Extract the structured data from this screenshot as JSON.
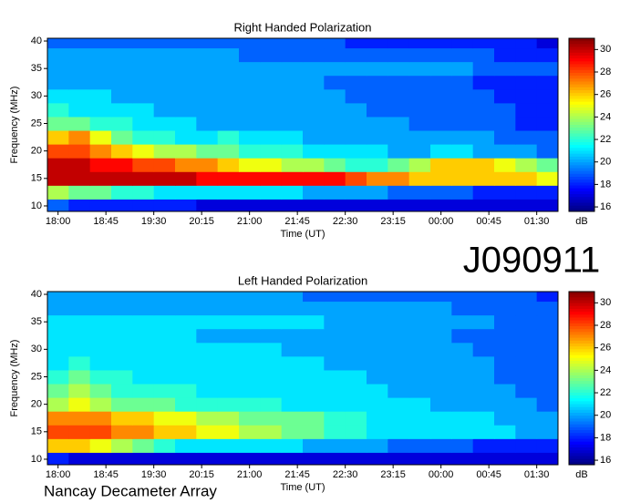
{
  "chart_data": [
    {
      "type": "heatmap",
      "title": "Right Handed Polarization",
      "xlabel": "Time (UT)",
      "ylabel": "Frequency (MHz)",
      "colorbar_label": "dB",
      "xlim": [
        -10,
        470
      ],
      "ylim": [
        9,
        40.5
      ],
      "clim": [
        15.6,
        31
      ],
      "xticks": [
        {
          "value": 0,
          "label": "18:00"
        },
        {
          "value": 45,
          "label": "18:45"
        },
        {
          "value": 90,
          "label": "19:30"
        },
        {
          "value": 135,
          "label": "20:15"
        },
        {
          "value": 180,
          "label": "21:00"
        },
        {
          "value": 225,
          "label": "21:45"
        },
        {
          "value": 270,
          "label": "22:30"
        },
        {
          "value": 315,
          "label": "23:15"
        },
        {
          "value": 360,
          "label": "00:00"
        },
        {
          "value": 405,
          "label": "00:45"
        },
        {
          "value": 450,
          "label": "01:30"
        }
      ],
      "yticks": [
        10,
        15,
        20,
        25,
        30,
        35,
        40
      ],
      "cticks": [
        16,
        18,
        20,
        22,
        24,
        26,
        28,
        30
      ],
      "colormap": "jet",
      "x": [
        0,
        20,
        40,
        60,
        80,
        100,
        120,
        140,
        160,
        180,
        200,
        220,
        240,
        260,
        280,
        300,
        320,
        340,
        360,
        380,
        400,
        420,
        440,
        460
      ],
      "y": [
        10,
        12.5,
        15,
        17.5,
        20,
        22.5,
        25,
        27.5,
        30,
        32.5,
        35,
        37.5,
        40
      ],
      "z": [
        [
          19,
          18,
          18,
          18,
          18,
          18,
          18,
          17,
          17,
          17,
          17,
          17,
          17,
          17,
          17,
          17,
          17,
          17,
          17,
          17,
          17,
          17,
          17,
          17
        ],
        [
          24,
          23,
          23,
          22,
          22,
          21,
          21,
          21,
          21,
          21,
          21,
          21,
          20,
          20,
          20,
          20,
          19,
          19,
          19,
          19,
          18,
          18,
          18,
          18
        ],
        [
          30,
          30,
          30,
          30,
          30,
          30,
          30,
          29,
          29,
          29,
          29,
          29,
          29,
          29,
          28,
          27,
          27,
          26,
          26,
          26,
          26,
          26,
          26,
          25
        ],
        [
          30,
          30,
          29,
          29,
          28,
          28,
          27,
          27,
          26,
          25,
          25,
          24,
          24,
          23,
          22,
          22,
          23,
          24,
          26,
          26,
          26,
          25,
          24,
          23
        ],
        [
          28,
          28,
          27,
          26,
          25,
          24,
          24,
          23,
          23,
          22,
          22,
          22,
          21,
          21,
          21,
          21,
          20,
          20,
          21,
          21,
          20,
          20,
          20,
          19
        ],
        [
          26,
          27,
          25,
          23,
          22,
          22,
          21,
          21,
          22,
          21,
          21,
          21,
          20,
          20,
          20,
          20,
          20,
          20,
          20,
          20,
          20,
          19,
          19,
          19
        ],
        [
          23,
          23,
          22,
          22,
          21,
          21,
          21,
          20,
          20,
          20,
          20,
          20,
          20,
          20,
          20,
          20,
          20,
          19,
          19,
          19,
          19,
          19,
          18,
          18
        ],
        [
          22,
          21,
          21,
          21,
          21,
          20,
          20,
          20,
          20,
          20,
          20,
          20,
          20,
          20,
          20,
          19,
          19,
          19,
          19,
          19,
          19,
          19,
          18,
          18
        ],
        [
          21,
          21,
          21,
          20,
          20,
          20,
          20,
          20,
          20,
          20,
          20,
          20,
          20,
          20,
          19,
          19,
          19,
          19,
          19,
          19,
          19,
          18,
          18,
          18
        ],
        [
          20,
          20,
          20,
          20,
          20,
          20,
          20,
          20,
          20,
          20,
          20,
          20,
          20,
          19,
          19,
          19,
          19,
          19,
          19,
          19,
          18,
          18,
          18,
          18
        ],
        [
          20,
          20,
          20,
          20,
          20,
          20,
          20,
          20,
          20,
          20,
          20,
          20,
          20,
          20,
          20,
          20,
          20,
          20,
          20,
          20,
          19,
          19,
          19,
          19
        ],
        [
          20,
          20,
          20,
          20,
          20,
          20,
          20,
          20,
          20,
          19,
          19,
          19,
          19,
          19,
          19,
          19,
          19,
          19,
          19,
          19,
          19,
          18,
          18,
          18
        ],
        [
          19,
          19,
          19,
          19,
          19,
          19,
          19,
          19,
          19,
          19,
          19,
          19,
          19,
          19,
          18,
          18,
          18,
          18,
          18,
          18,
          18,
          18,
          18,
          17
        ]
      ]
    },
    {
      "type": "heatmap",
      "title": "Left Handed Polarization",
      "xlabel": "Time (UT)",
      "ylabel": "Frequency (MHz)",
      "colorbar_label": "dB",
      "xlim": [
        -10,
        470
      ],
      "ylim": [
        9,
        40.5
      ],
      "clim": [
        15.6,
        31
      ],
      "xticks": [
        {
          "value": 0,
          "label": "18:00"
        },
        {
          "value": 45,
          "label": "18:45"
        },
        {
          "value": 90,
          "label": "19:30"
        },
        {
          "value": 135,
          "label": "20:15"
        },
        {
          "value": 180,
          "label": "21:00"
        },
        {
          "value": 225,
          "label": "21:45"
        },
        {
          "value": 270,
          "label": "22:30"
        },
        {
          "value": 315,
          "label": "23:15"
        },
        {
          "value": 360,
          "label": "00:00"
        },
        {
          "value": 405,
          "label": "00:45"
        },
        {
          "value": 450,
          "label": "01:30"
        }
      ],
      "yticks": [
        10,
        15,
        20,
        25,
        30,
        35,
        40
      ],
      "cticks": [
        16,
        18,
        20,
        22,
        24,
        26,
        28,
        30
      ],
      "colormap": "jet",
      "x": [
        0,
        20,
        40,
        60,
        80,
        100,
        120,
        140,
        160,
        180,
        200,
        220,
        240,
        260,
        280,
        300,
        320,
        340,
        360,
        380,
        400,
        420,
        440,
        460
      ],
      "y": [
        10,
        12.5,
        15,
        17.5,
        20,
        22.5,
        25,
        27.5,
        30,
        32.5,
        35,
        37.5,
        40
      ],
      "z": [
        [
          18,
          17,
          17,
          17,
          17,
          17,
          17,
          17,
          17,
          17,
          17,
          17,
          17,
          17,
          17,
          17,
          17,
          17,
          17,
          17,
          17,
          17,
          17,
          17
        ],
        [
          26,
          26,
          25,
          24,
          23,
          22,
          21,
          21,
          21,
          21,
          21,
          21,
          20,
          20,
          20,
          20,
          19,
          19,
          19,
          19,
          18,
          18,
          18,
          18
        ],
        [
          28,
          28,
          28,
          27,
          27,
          26,
          26,
          25,
          25,
          24,
          24,
          23,
          23,
          22,
          22,
          21,
          21,
          21,
          21,
          21,
          21,
          21,
          20,
          20
        ],
        [
          27,
          27,
          27,
          26,
          26,
          25,
          25,
          24,
          24,
          23,
          23,
          23,
          23,
          22,
          22,
          21,
          21,
          21,
          21,
          21,
          21,
          20,
          20,
          20
        ],
        [
          24,
          25,
          24,
          23,
          23,
          23,
          22,
          22,
          22,
          22,
          22,
          21,
          21,
          21,
          21,
          21,
          21,
          21,
          20,
          20,
          20,
          20,
          20,
          19
        ],
        [
          23,
          24,
          23,
          22,
          22,
          22,
          22,
          21,
          21,
          21,
          21,
          21,
          21,
          21,
          21,
          21,
          20,
          20,
          20,
          20,
          20,
          20,
          19,
          19
        ],
        [
          22,
          23,
          22,
          22,
          21,
          21,
          21,
          21,
          21,
          21,
          21,
          21,
          21,
          21,
          21,
          20,
          20,
          20,
          20,
          20,
          20,
          19,
          19,
          19
        ],
        [
          21,
          22,
          21,
          21,
          21,
          21,
          21,
          21,
          21,
          21,
          21,
          21,
          21,
          20,
          20,
          20,
          20,
          20,
          20,
          20,
          20,
          19,
          19,
          19
        ],
        [
          21,
          21,
          21,
          21,
          21,
          21,
          21,
          21,
          21,
          21,
          21,
          20,
          20,
          20,
          20,
          20,
          20,
          20,
          20,
          20,
          19,
          19,
          19,
          19
        ],
        [
          21,
          21,
          21,
          21,
          21,
          21,
          21,
          20,
          20,
          20,
          20,
          20,
          20,
          20,
          20,
          20,
          20,
          20,
          20,
          19,
          19,
          19,
          19,
          19
        ],
        [
          21,
          21,
          21,
          21,
          21,
          21,
          21,
          21,
          21,
          21,
          21,
          21,
          21,
          20,
          20,
          20,
          20,
          20,
          20,
          20,
          20,
          19,
          19,
          19
        ],
        [
          20,
          20,
          20,
          20,
          20,
          20,
          20,
          20,
          20,
          20,
          20,
          20,
          20,
          20,
          20,
          20,
          20,
          20,
          20,
          19,
          19,
          19,
          19,
          19
        ],
        [
          20,
          20,
          20,
          20,
          20,
          20,
          20,
          20,
          20,
          20,
          20,
          20,
          19,
          19,
          19,
          19,
          19,
          19,
          19,
          19,
          19,
          19,
          19,
          18
        ]
      ]
    }
  ],
  "header": {
    "event_id": "J090911"
  },
  "footer": {
    "source": "Nancay Decameter Array"
  }
}
